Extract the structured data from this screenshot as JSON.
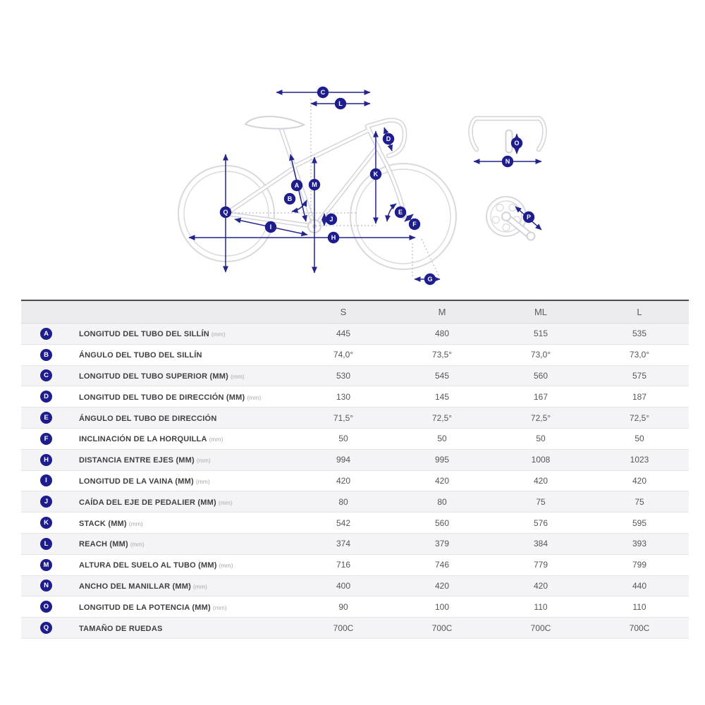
{
  "accent_color": "#24248f",
  "badge_color": "#1d1d8e",
  "diagram": {
    "markers": {
      "a": "A",
      "b": "B",
      "c": "C",
      "d": "D",
      "e": "E",
      "f": "F",
      "g": "G",
      "h": "H",
      "i": "I",
      "j": "J",
      "k": "K",
      "l": "L",
      "m": "M",
      "n": "N",
      "o": "O",
      "p": "P",
      "q": "Q"
    }
  },
  "table": {
    "size_headers": [
      "S",
      "M",
      "ML",
      "L"
    ],
    "rows": [
      {
        "letter": "A",
        "label": "LONGITUD DEL TUBO DEL SILLÍN",
        "unit": "(mm)",
        "values": [
          "445",
          "480",
          "515",
          "535"
        ]
      },
      {
        "letter": "B",
        "label": "ÁNGULO DEL TUBO DEL SILLÍN",
        "unit": "",
        "values": [
          "74,0°",
          "73,5°",
          "73,0°",
          "73,0°"
        ]
      },
      {
        "letter": "C",
        "label": "LONGITUD DEL TUBO SUPERIOR (MM)",
        "unit": "(mm)",
        "values": [
          "530",
          "545",
          "560",
          "575"
        ]
      },
      {
        "letter": "D",
        "label": "LONGITUD DEL TUBO DE DIRECCIÓN (MM)",
        "unit": "(mm)",
        "values": [
          "130",
          "145",
          "167",
          "187"
        ]
      },
      {
        "letter": "E",
        "label": "ÁNGULO DEL TUBO DE DIRECCIÓN",
        "unit": "",
        "values": [
          "71,5°",
          "72,5°",
          "72,5°",
          "72,5°"
        ]
      },
      {
        "letter": "F",
        "label": "INCLINACIÓN DE LA HORQUILLA",
        "unit": "(mm)",
        "values": [
          "50",
          "50",
          "50",
          "50"
        ]
      },
      {
        "letter": "H",
        "label": "DISTANCIA ENTRE EJES (MM)",
        "unit": "(mm)",
        "values": [
          "994",
          "995",
          "1008",
          "1023"
        ]
      },
      {
        "letter": "I",
        "label": "LONGITUD DE LA VAINA (MM)",
        "unit": "(mm)",
        "values": [
          "420",
          "420",
          "420",
          "420"
        ]
      },
      {
        "letter": "J",
        "label": "CAÍDA DEL EJE DE PEDALIER (MM)",
        "unit": "(mm)",
        "values": [
          "80",
          "80",
          "75",
          "75"
        ]
      },
      {
        "letter": "K",
        "label": "STACK (MM)",
        "unit": "(mm)",
        "values": [
          "542",
          "560",
          "576",
          "595"
        ]
      },
      {
        "letter": "L",
        "label": "REACH (MM)",
        "unit": "(mm)",
        "values": [
          "374",
          "379",
          "384",
          "393"
        ]
      },
      {
        "letter": "M",
        "label": "ALTURA DEL SUELO AL TUBO (MM)",
        "unit": "(mm)",
        "values": [
          "716",
          "746",
          "779",
          "799"
        ]
      },
      {
        "letter": "N",
        "label": "ANCHO DEL MANILLAR (MM)",
        "unit": "(mm)",
        "values": [
          "400",
          "420",
          "420",
          "440"
        ]
      },
      {
        "letter": "O",
        "label": "LONGITUD DE LA POTENCIA (MM)",
        "unit": "(mm)",
        "values": [
          "90",
          "100",
          "110",
          "110"
        ]
      },
      {
        "letter": "Q",
        "label": "TAMAÑO DE RUEDAS",
        "unit": "",
        "values": [
          "700C",
          "700C",
          "700C",
          "700C"
        ]
      }
    ]
  }
}
